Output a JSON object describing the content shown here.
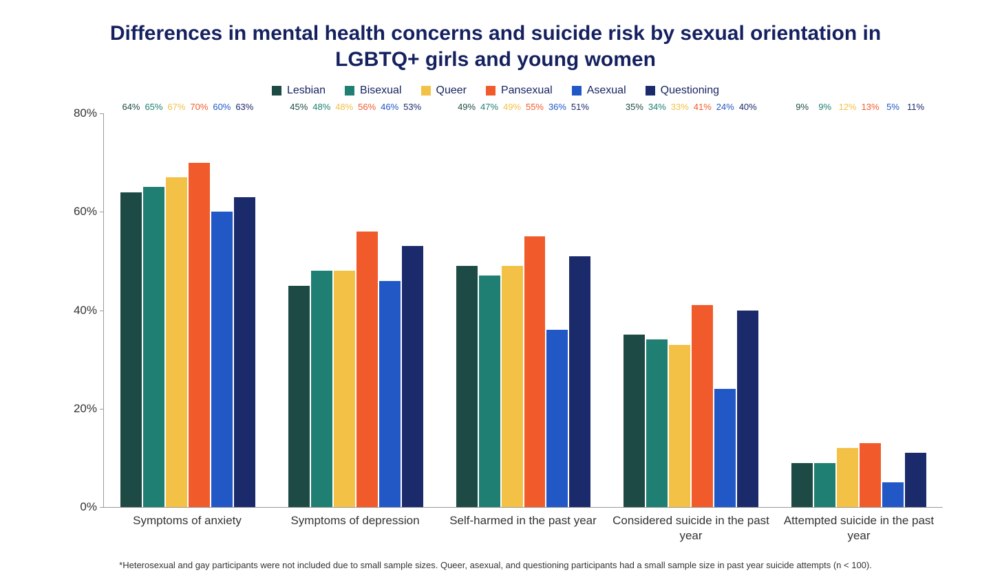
{
  "chart": {
    "type": "grouped-bar",
    "title": "Differences in mental health concerns and suicide risk by sexual orientation in LGBTQ+ girls and young women",
    "title_color": "#15215f",
    "title_fontsize": 30,
    "background_color": "#ffffff",
    "footnote": "*Heterosexual and gay participants were not included due to small sample sizes. Queer, asexual, and questioning participants had a small sample size in past year suicide attempts (n < 100).",
    "footnote_color": "#333333",
    "footnote_fontsize": 13,
    "axis_color": "#999999",
    "y_axis": {
      "min": 0,
      "max": 80,
      "tick_step": 20,
      "tick_suffix": "%",
      "tick_fontsize": 17,
      "tick_color": "#333333"
    },
    "x_label_fontsize": 17,
    "x_label_color": "#333333",
    "bar_label_fontsize": 13,
    "legend_fontsize": 16,
    "legend_text_color": "#15215f",
    "series": [
      {
        "name": "Lesbian",
        "color": "#1d4a44"
      },
      {
        "name": "Bisexual",
        "color": "#1f7f72"
      },
      {
        "name": "Queer",
        "color": "#f3c146"
      },
      {
        "name": "Pansexual",
        "color": "#f15a2b"
      },
      {
        "name": "Asexual",
        "color": "#2257c6"
      },
      {
        "name": "Questioning",
        "color": "#1b2a6b"
      }
    ],
    "categories": [
      {
        "label": "Symptoms of anxiety",
        "values": [
          64,
          65,
          67,
          70,
          60,
          63
        ]
      },
      {
        "label": "Symptoms of depression",
        "values": [
          45,
          48,
          48,
          56,
          46,
          53
        ]
      },
      {
        "label": "Self-harmed in the past year",
        "values": [
          49,
          47,
          49,
          55,
          36,
          51
        ]
      },
      {
        "label": "Considered suicide in the past year",
        "values": [
          35,
          34,
          33,
          41,
          24,
          40
        ]
      },
      {
        "label": "Attempted suicide in the past year",
        "values": [
          9,
          9,
          12,
          13,
          5,
          11
        ]
      }
    ]
  }
}
